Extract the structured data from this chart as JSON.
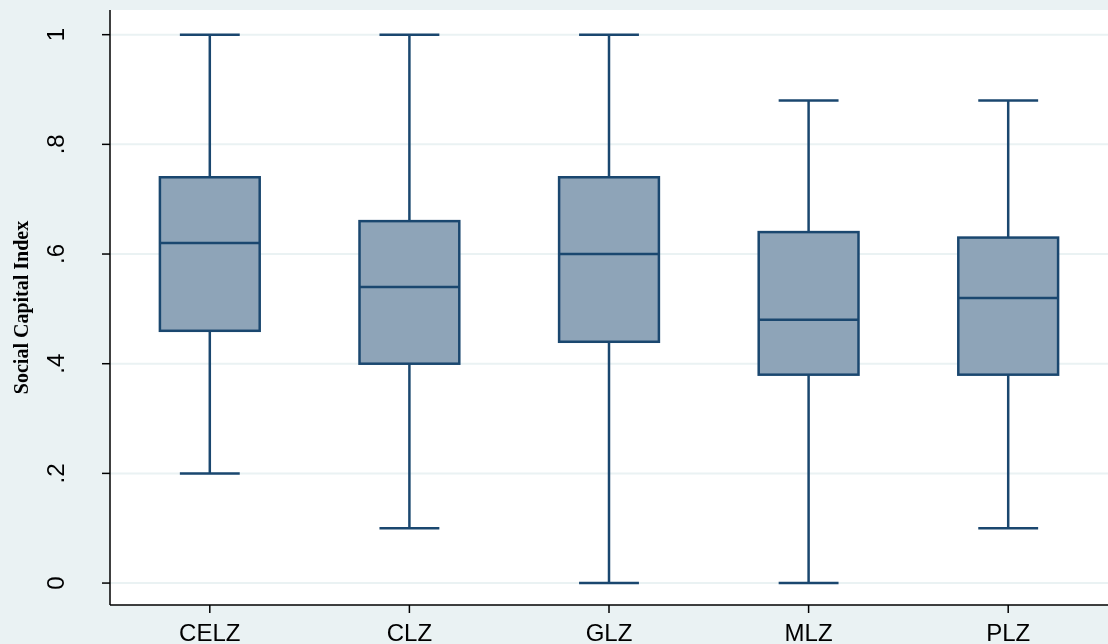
{
  "chart_data": {
    "type": "box",
    "ylabel": "Social Capital Index",
    "categories": [
      "CELZ",
      "CLZ",
      "GLZ",
      "MLZ",
      "PLZ"
    ],
    "boxes": [
      {
        "low": 0.2,
        "q1": 0.46,
        "median": 0.62,
        "q3": 0.74,
        "high": 1
      },
      {
        "low": 0.1,
        "q1": 0.4,
        "median": 0.54,
        "q3": 0.66,
        "high": 1
      },
      {
        "low": 0,
        "q1": 0.44,
        "median": 0.6,
        "q3": 0.74,
        "high": 1
      },
      {
        "low": 0,
        "q1": 0.38,
        "median": 0.48,
        "q3": 0.64,
        "high": 0.88
      },
      {
        "low": 0.1,
        "q1": 0.38,
        "median": 0.52,
        "q3": 0.63,
        "high": 0.88
      }
    ],
    "color": "#8ea4b8",
    "ylim": [
      -0.04,
      1.045
    ],
    "yticks": [
      0,
      {
        "value": 0.2,
        "label": ".2"
      },
      {
        "value": 0.4,
        "label": ".4"
      },
      {
        "value": 0.6,
        "label": ".6"
      },
      {
        "value": 0.8,
        "label": ".8"
      },
      1
    ],
    "grid": "y"
  }
}
